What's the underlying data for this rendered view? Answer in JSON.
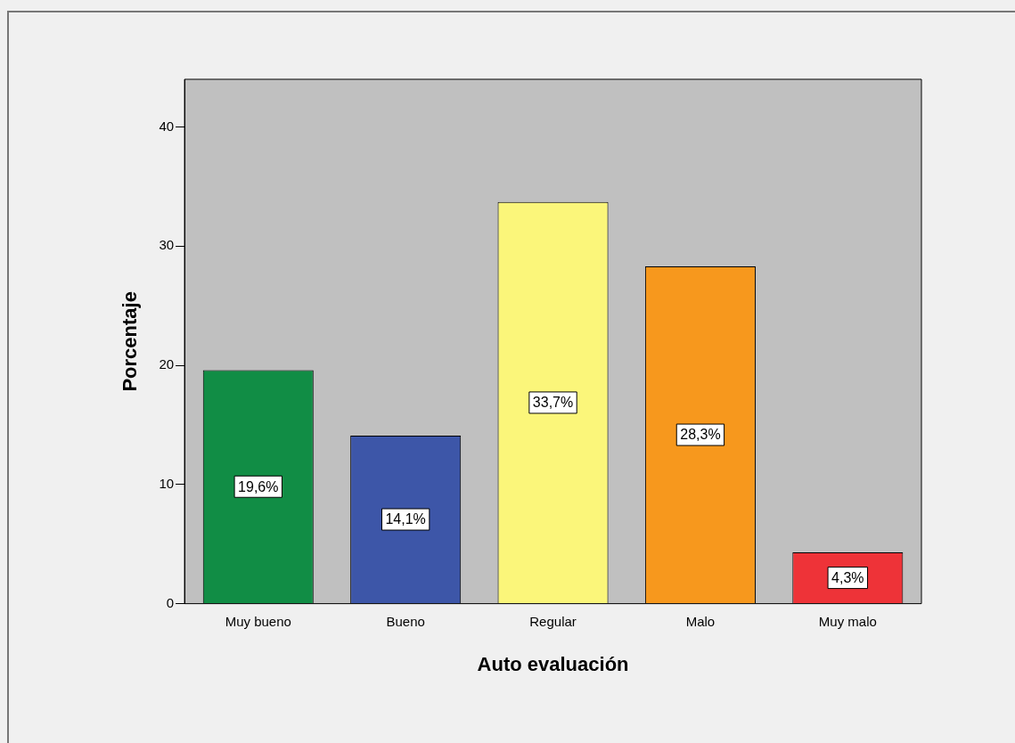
{
  "chart_data": {
    "type": "bar",
    "categories": [
      "Muy bueno",
      "Bueno",
      "Regular",
      "Malo",
      "Muy malo"
    ],
    "values": [
      19.6,
      14.1,
      33.7,
      28.3,
      4.3
    ],
    "colors": [
      "#118d45",
      "#3d56a8",
      "#fbf67a",
      "#f7981d",
      "#ee3338"
    ],
    "value_labels": [
      "19,6%",
      "14,1%",
      "33,7%",
      "28,3%",
      "4,3%"
    ],
    "xlabel": "Auto evaluación",
    "ylabel": "Porcentaje",
    "ylim": [
      0,
      44
    ],
    "yticks": [
      0,
      10,
      20,
      30,
      40
    ],
    "grid": false,
    "legend": false
  }
}
